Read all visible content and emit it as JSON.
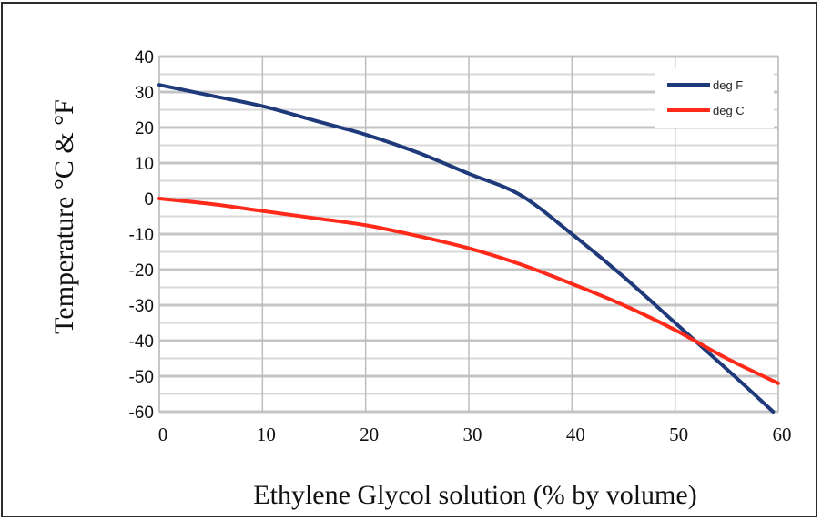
{
  "chart_data": {
    "type": "line",
    "xlabel": "Ethylene  Glycol  solution (% by  volume)",
    "ylabel": "Temperature  °C   & °F",
    "xlim": [
      0,
      60
    ],
    "ylim": [
      -60,
      40
    ],
    "x_ticks": [
      "0",
      "10",
      "20",
      "30",
      "40",
      "50",
      "60"
    ],
    "y_ticks": [
      "40",
      "30",
      "20",
      "10",
      "0",
      "-10",
      "-20",
      "-30",
      "-40",
      "-50",
      "-60"
    ],
    "grid": true,
    "legend_position": "top-right",
    "series": [
      {
        "name": "deg F",
        "color": "#1f3a7a",
        "x": [
          0,
          5,
          10,
          15,
          20,
          25,
          30,
          35,
          40,
          45,
          50,
          55,
          59.5
        ],
        "y": [
          32,
          29,
          26,
          22,
          18,
          13,
          7,
          1,
          -10,
          -22,
          -35,
          -48,
          -60
        ]
      },
      {
        "name": "deg C",
        "color": "#ff2a1a",
        "x": [
          0,
          5,
          10,
          15,
          20,
          25,
          30,
          35,
          40,
          45,
          50,
          55,
          60
        ],
        "y": [
          0,
          -1.5,
          -3.5,
          -5.5,
          -7.5,
          -10.5,
          -14,
          -18.5,
          -24,
          -30,
          -37,
          -45,
          -52
        ]
      }
    ]
  }
}
